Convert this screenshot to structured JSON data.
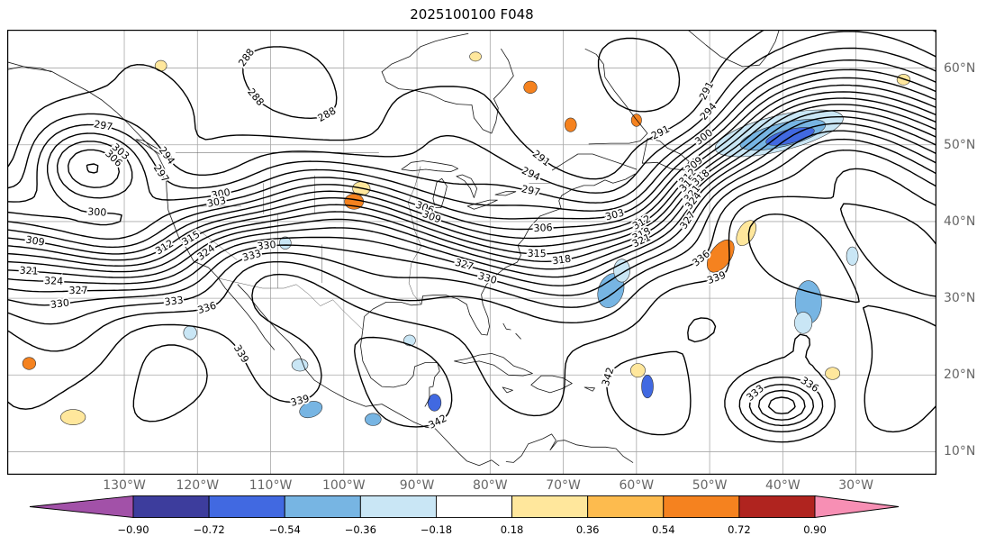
{
  "title": "2025100100 F048",
  "chart_data": {
    "type": "contour_map",
    "title": "2025100100 F048",
    "description": "Filled/contoured meteorological analysis map of North America and adjacent oceans, black theta contours every 3 units with blue/yellow/orange difference shading",
    "lon_range": [
      -146,
      -19
    ],
    "lat_range": [
      7,
      65
    ],
    "x_axis": {
      "labels": [
        "130°W",
        "120°W",
        "110°W",
        "100°W",
        "90°W",
        "80°W",
        "70°W",
        "60°W",
        "50°W",
        "40°W",
        "30°W"
      ],
      "lons": [
        -130,
        -120,
        -110,
        -100,
        -90,
        -80,
        -70,
        -60,
        -50,
        -40,
        -30
      ]
    },
    "y_axis": {
      "labels": [
        "60°N",
        "50°N",
        "40°N",
        "30°N",
        "20°N",
        "10°N"
      ],
      "lats": [
        60,
        50,
        40,
        30,
        20,
        10
      ]
    },
    "contour_interval": 3,
    "contour_levels": [
      285,
      288,
      291,
      294,
      297,
      300,
      303,
      306,
      309,
      312,
      315,
      318,
      321,
      324,
      327,
      330,
      333,
      336,
      339,
      342,
      345
    ],
    "visible_contour_labels": [
      "291",
      "294",
      "297",
      "300",
      "303",
      "306",
      "309",
      "312",
      "315",
      "318",
      "321",
      "324",
      "327",
      "330",
      "333",
      "336",
      "339"
    ],
    "colorbar": {
      "tick_labels": [
        "−0.90",
        "−0.72",
        "−0.54",
        "−0.36",
        "−0.18",
        "0.18",
        "0.36",
        "0.54",
        "0.72",
        "0.90"
      ],
      "tick_values": [
        -0.9,
        -0.72,
        -0.54,
        -0.36,
        -0.18,
        0.18,
        0.36,
        0.54,
        0.72,
        0.9
      ],
      "colors": [
        "#a251a8",
        "#3d3d9d",
        "#4169e1",
        "#77b5e3",
        "#c9e6f5",
        "#ffffff",
        "#ffe79c",
        "#fdbb4e",
        "#f5821f",
        "#b0241f",
        "#f78fb4"
      ]
    },
    "grid": true,
    "shaded_regions": [
      {
        "lon": -40.5,
        "lat": 51.5,
        "rx": 9.0,
        "ry": 2.3,
        "rot": -14,
        "ci": 4
      },
      {
        "lon": -40.0,
        "lat": 51.3,
        "rx": 6.0,
        "ry": 1.5,
        "rot": -14,
        "ci": 3
      },
      {
        "lon": -39.0,
        "lat": 51.1,
        "rx": 3.4,
        "ry": 0.9,
        "rot": -14,
        "ci": 2
      },
      {
        "lon": -36.5,
        "lat": 29.5,
        "rx": 1.8,
        "ry": 2.8,
        "rot": 0,
        "ci": 3
      },
      {
        "lon": -37.2,
        "lat": 26.8,
        "rx": 1.2,
        "ry": 1.4,
        "rot": 0,
        "ci": 4
      },
      {
        "lon": -63.5,
        "lat": 31.0,
        "rx": 1.7,
        "ry": 2.3,
        "rot": 20,
        "ci": 3
      },
      {
        "lon": -62.0,
        "lat": 33.6,
        "rx": 1.1,
        "ry": 1.5,
        "rot": 0,
        "ci": 4
      },
      {
        "lon": -48.5,
        "lat": 35.5,
        "rx": 1.4,
        "ry": 2.4,
        "rot": 35,
        "ci": 8
      },
      {
        "lon": -45.0,
        "lat": 38.5,
        "rx": 1.1,
        "ry": 1.8,
        "rot": 30,
        "ci": 6
      },
      {
        "lon": -98.6,
        "lat": 42.6,
        "rx": 1.3,
        "ry": 1.0,
        "rot": 0,
        "ci": 8
      },
      {
        "lon": -97.6,
        "lat": 44.3,
        "rx": 1.2,
        "ry": 0.9,
        "rot": 0,
        "ci": 6
      },
      {
        "lon": -104.5,
        "lat": 15.5,
        "rx": 1.6,
        "ry": 1.0,
        "rot": -20,
        "ci": 3
      },
      {
        "lon": -96.0,
        "lat": 14.2,
        "rx": 1.1,
        "ry": 0.8,
        "rot": 0,
        "ci": 3
      },
      {
        "lon": -87.6,
        "lat": 16.4,
        "rx": 0.9,
        "ry": 1.1,
        "rot": 0,
        "ci": 2
      },
      {
        "lon": -58.5,
        "lat": 18.5,
        "rx": 0.8,
        "ry": 1.5,
        "rot": 0,
        "ci": 2
      },
      {
        "lon": -59.8,
        "lat": 20.6,
        "rx": 1.0,
        "ry": 0.9,
        "rot": 0,
        "ci": 6
      },
      {
        "lon": -74.5,
        "lat": 57.5,
        "rx": 0.9,
        "ry": 0.8,
        "rot": 0,
        "ci": 8
      },
      {
        "lon": -69.0,
        "lat": 52.6,
        "rx": 0.8,
        "ry": 0.9,
        "rot": 0,
        "ci": 8
      },
      {
        "lon": -23.5,
        "lat": 58.5,
        "rx": 0.9,
        "ry": 0.7,
        "rot": 0,
        "ci": 6
      },
      {
        "lon": -137.0,
        "lat": 14.5,
        "rx": 1.7,
        "ry": 1.0,
        "rot": 0,
        "ci": 6
      },
      {
        "lon": -143.0,
        "lat": 21.5,
        "rx": 0.9,
        "ry": 0.8,
        "rot": 0,
        "ci": 8
      },
      {
        "lon": -121.0,
        "lat": 25.5,
        "rx": 0.9,
        "ry": 0.9,
        "rot": 0,
        "ci": 4
      },
      {
        "lon": -106.0,
        "lat": 21.3,
        "rx": 1.1,
        "ry": 0.8,
        "rot": 0,
        "ci": 4
      },
      {
        "lon": -125.0,
        "lat": 60.3,
        "rx": 0.8,
        "ry": 0.7,
        "rot": 0,
        "ci": 6
      },
      {
        "lon": -108.0,
        "lat": 37.2,
        "rx": 0.8,
        "ry": 0.8,
        "rot": 0,
        "ci": 4
      },
      {
        "lon": -33.2,
        "lat": 20.2,
        "rx": 1.0,
        "ry": 0.8,
        "rot": 0,
        "ci": 6
      },
      {
        "lon": -82.0,
        "lat": 61.5,
        "rx": 0.8,
        "ry": 0.6,
        "rot": 0,
        "ci": 6
      },
      {
        "lon": -60.0,
        "lat": 53.2,
        "rx": 0.7,
        "ry": 0.8,
        "rot": 0,
        "ci": 8
      },
      {
        "lon": -30.5,
        "lat": 35.5,
        "rx": 0.8,
        "ry": 1.2,
        "rot": 0,
        "ci": 4
      },
      {
        "lon": -91.0,
        "lat": 24.5,
        "rx": 0.8,
        "ry": 0.7,
        "rot": 0,
        "ci": 4
      }
    ]
  }
}
